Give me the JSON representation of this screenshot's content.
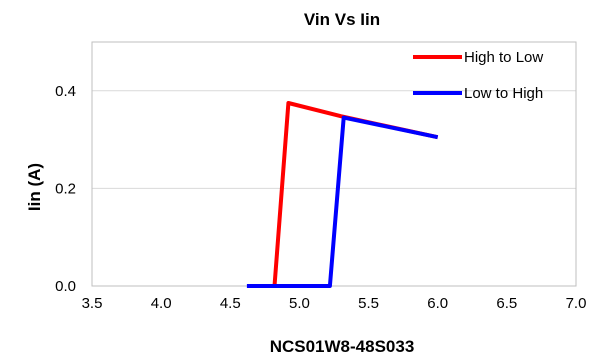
{
  "chart_data": {
    "type": "line",
    "title": "Vin Vs Iin",
    "xlabel": "NCS01W8-48S033",
    "ylabel": "Iin (A)",
    "xlim": [
      3.5,
      7.0
    ],
    "ylim": [
      0.0,
      0.5
    ],
    "x_ticks": [
      "3.5",
      "4.0",
      "4.5",
      "5.0",
      "5.5",
      "6.0",
      "6.5",
      "7.0"
    ],
    "y_ticks": [
      "0.0",
      "0.2",
      "0.4"
    ],
    "grid": "horizontal",
    "legend_position": "top-right",
    "series": [
      {
        "name": "High to Low",
        "color": "#ff0000",
        "points": [
          [
            6.0,
            0.305
          ],
          [
            5.3,
            0.348
          ],
          [
            4.92,
            0.375
          ],
          [
            4.82,
            0.0
          ]
        ]
      },
      {
        "name": "Low to High",
        "color": "#0000ff",
        "points": [
          [
            4.62,
            0.0
          ],
          [
            5.22,
            0.0
          ],
          [
            5.32,
            0.345
          ],
          [
            6.0,
            0.305
          ]
        ]
      }
    ]
  }
}
